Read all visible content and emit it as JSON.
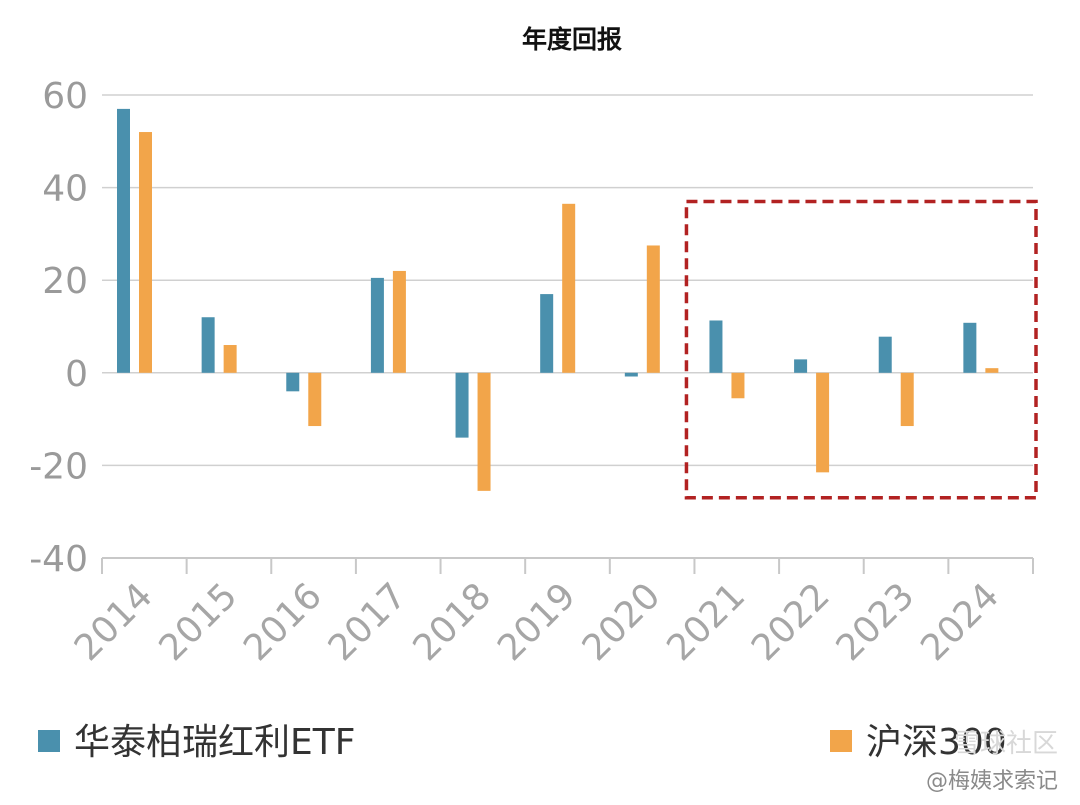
{
  "chart_data": {
    "type": "bar",
    "title": "年度回报",
    "categories": [
      "2014",
      "2015",
      "2016",
      "2017",
      "2018",
      "2019",
      "2020",
      "2021",
      "2022",
      "2023",
      "2024"
    ],
    "series": [
      {
        "name": "华泰柏瑞红利ETF",
        "color": "#4a90ad",
        "values": [
          57,
          12,
          -4,
          20.5,
          -14,
          17,
          -0.8,
          11.3,
          2.9,
          7.8,
          10.8
        ]
      },
      {
        "name": "沪深300",
        "color": "#f2a54a",
        "values": [
          52,
          6,
          -11.5,
          22,
          -25.5,
          36.5,
          27.5,
          -5.5,
          -21.5,
          -11.5,
          1
        ]
      }
    ],
    "y_ticks": [
      "60",
      "40",
      "20",
      "0",
      "-20",
      "-40"
    ],
    "ylim": [
      -40,
      60
    ],
    "grid": true,
    "legend_position": "bottom",
    "highlight_range": {
      "from": "2021",
      "to": "2024",
      "ymin": -27,
      "ymax": 37,
      "color": "#b22222"
    }
  },
  "watermark": {
    "community": "雪球社区",
    "author": "@梅姨求索记"
  }
}
